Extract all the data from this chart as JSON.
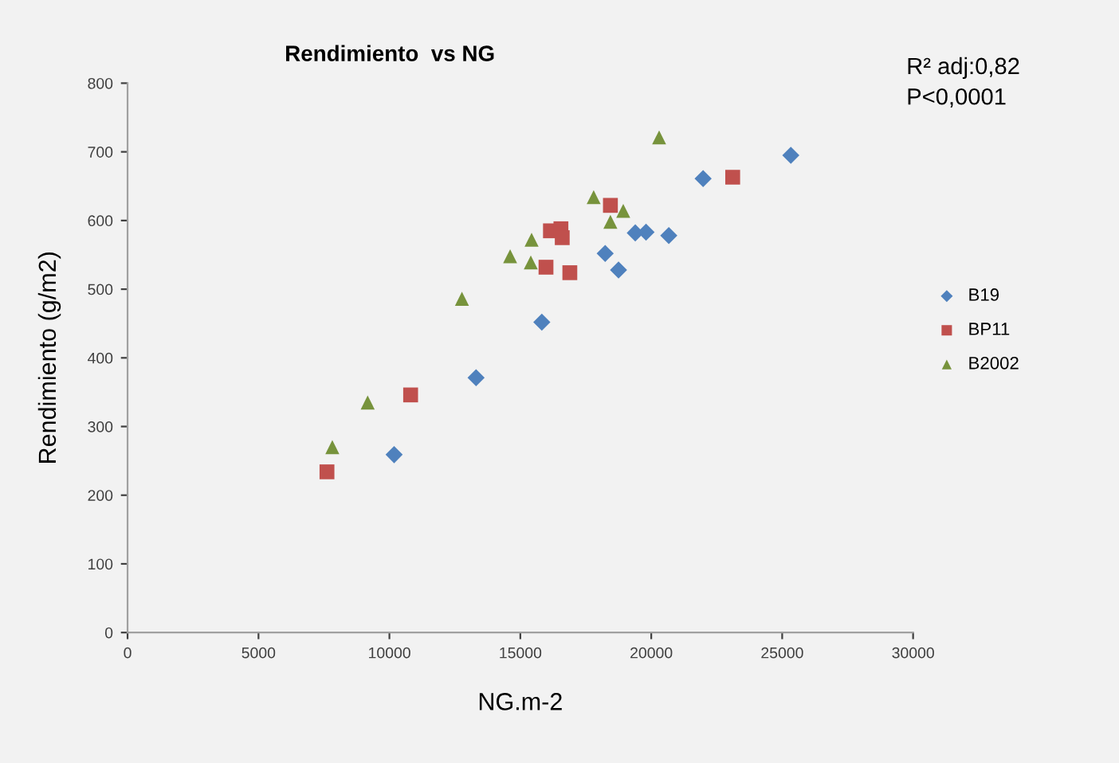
{
  "chart_data": {
    "type": "scatter",
    "title": "Rendimiento  vs NG",
    "xlabel": "NG.m-2",
    "ylabel": "Rendimiento (g/m2)",
    "annotations": [
      "R² adj:0,82",
      "P<0,0001"
    ],
    "xlim": [
      0,
      30000
    ],
    "xticks": [
      0,
      5000,
      10000,
      15000,
      20000,
      25000,
      30000
    ],
    "ylim": [
      0,
      800
    ],
    "yticks": [
      0,
      100,
      200,
      300,
      400,
      500,
      600,
      700,
      800
    ],
    "grid": false,
    "legend": "right",
    "series": [
      {
        "name": "B19",
        "color": "#4f81bd",
        "marker": "diamond",
        "x": [
          10180,
          13310,
          15820,
          18240,
          18750,
          19390,
          19800,
          20670,
          21980,
          25330
        ],
        "values": [
          259,
          371,
          452,
          552,
          528,
          582,
          583,
          578,
          661,
          695
        ]
      },
      {
        "name": "BP11",
        "color": "#c0504d",
        "marker": "square",
        "x": [
          7615,
          10810,
          15980,
          16150,
          16550,
          16600,
          16890,
          18440,
          23110
        ],
        "values": [
          234,
          346,
          532,
          585,
          588,
          575,
          524,
          622,
          663
        ]
      },
      {
        "name": "B2002",
        "color": "#77933c",
        "marker": "triangle",
        "x": [
          7820,
          9170,
          12770,
          14610,
          15400,
          15430,
          17800,
          18440,
          18930,
          20300
        ],
        "values": [
          270,
          335,
          486,
          548,
          539,
          572,
          634,
          598,
          614,
          721
        ]
      }
    ]
  }
}
